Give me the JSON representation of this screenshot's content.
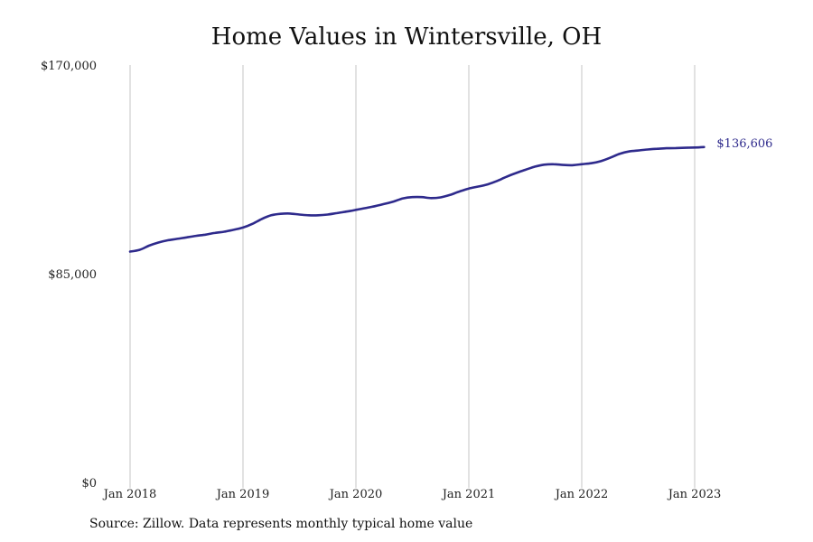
{
  "chart_data": {
    "type": "line",
    "title": "Home Values in Wintersville, OH",
    "xlabel": "",
    "ylabel": "",
    "ylim": [
      0,
      170000
    ],
    "y_ticks": [
      {
        "value": 0,
        "label": "$0"
      },
      {
        "value": 85000,
        "label": "$85,000"
      },
      {
        "value": 170000,
        "label": "$170,000"
      }
    ],
    "x_ticks": [
      {
        "date": "2018-01",
        "label": "Jan 2018"
      },
      {
        "date": "2019-01",
        "label": "Jan 2019"
      },
      {
        "date": "2020-01",
        "label": "Jan 2020"
      },
      {
        "date": "2021-01",
        "label": "Jan 2021"
      },
      {
        "date": "2022-01",
        "label": "Jan 2022"
      },
      {
        "date": "2023-01",
        "label": "Jan 2023"
      }
    ],
    "grid": "vertical",
    "line_color": "#2e2a8c",
    "end_label": "$136,606",
    "series": [
      {
        "x": [
          "2018-01",
          "2018-02",
          "2018-03",
          "2018-04",
          "2018-05",
          "2018-06",
          "2018-07",
          "2018-08",
          "2018-09",
          "2018-10",
          "2018-11",
          "2018-12",
          "2019-01",
          "2019-02",
          "2019-03",
          "2019-04",
          "2019-05",
          "2019-06",
          "2019-07",
          "2019-08",
          "2019-09",
          "2019-10",
          "2019-11",
          "2019-12",
          "2020-01",
          "2020-02",
          "2020-03",
          "2020-04",
          "2020-05",
          "2020-06",
          "2020-07",
          "2020-08",
          "2020-09",
          "2020-10",
          "2020-11",
          "2020-12",
          "2021-01",
          "2021-02",
          "2021-03",
          "2021-04",
          "2021-05",
          "2021-06",
          "2021-07",
          "2021-08",
          "2021-09",
          "2021-10",
          "2021-11",
          "2021-12",
          "2022-01",
          "2022-02",
          "2022-03",
          "2022-04",
          "2022-05",
          "2022-06",
          "2022-07",
          "2022-08",
          "2022-09",
          "2022-10",
          "2022-11",
          "2022-12",
          "2023-01",
          "2023-02"
        ],
        "values": [
          94000,
          94700,
          96400,
          97700,
          98600,
          99200,
          99800,
          100400,
          100900,
          101600,
          102100,
          102900,
          103800,
          105300,
          107300,
          108800,
          109400,
          109500,
          109100,
          108800,
          108800,
          109100,
          109700,
          110300,
          111000,
          111700,
          112500,
          113400,
          114400,
          115700,
          116200,
          116200,
          115800,
          116100,
          117100,
          118500,
          119700,
          120500,
          121400,
          122800,
          124500,
          126000,
          127300,
          128600,
          129400,
          129600,
          129300,
          129200,
          129600,
          130000,
          130800,
          132200,
          133800,
          134800,
          135200,
          135600,
          135900,
          136100,
          136200,
          136300,
          136400,
          136600
        ]
      }
    ]
  },
  "source_note": "Source: Zillow. Data represents monthly typical home value"
}
